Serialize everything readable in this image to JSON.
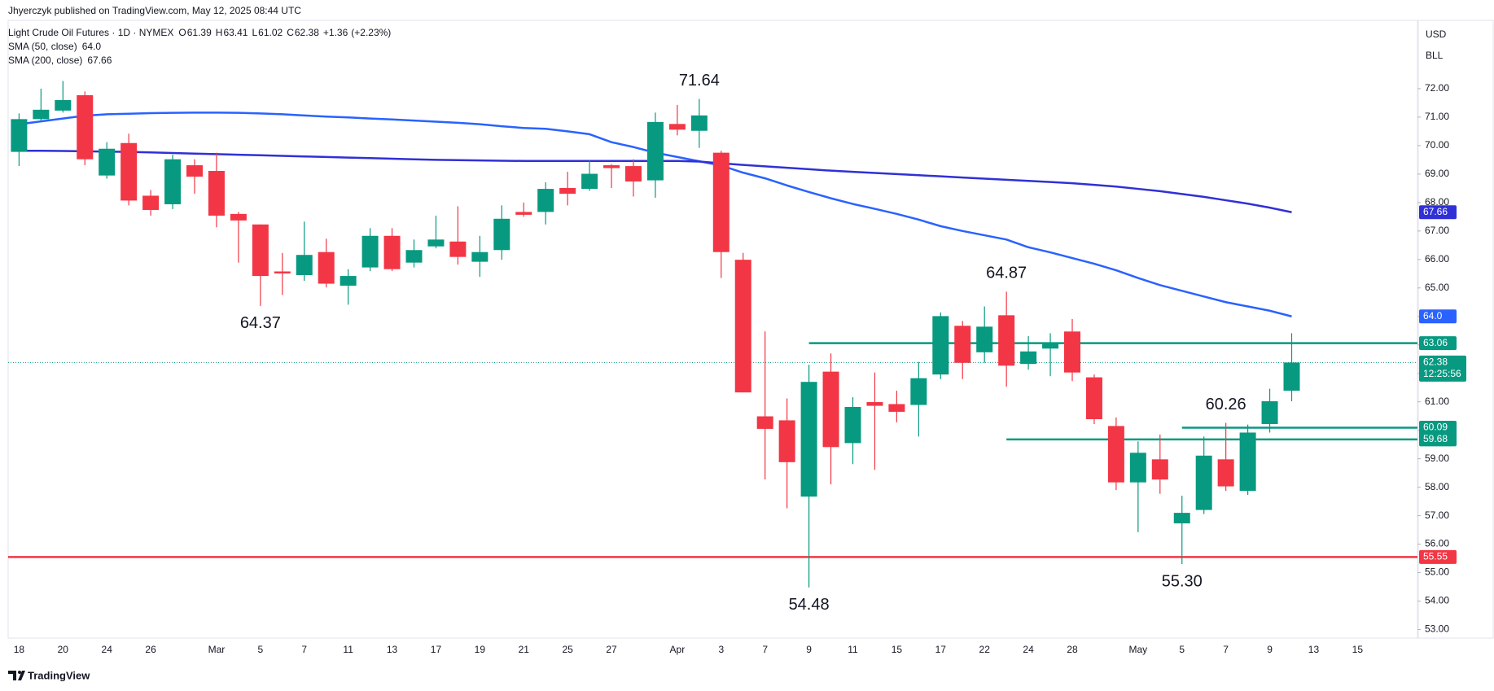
{
  "chart_data": {
    "type": "candlestick",
    "published": "Jhyerczyk published on TradingView.com, May 12, 2025 08:44 UTC",
    "title": "Light Crude Oil Futures · 1D · NYMEX",
    "quote": [
      {
        "label": "O",
        "value": 61.39
      },
      {
        "label": "H",
        "value": 63.41
      },
      {
        "label": "L",
        "value": 61.02
      },
      {
        "label": "C",
        "value": 62.38
      }
    ],
    "change": {
      "value": 1.36,
      "label": "+1.36"
    },
    "change_pct": {
      "value": 2.23,
      "label": "(+2.23%)"
    },
    "currency": "USD",
    "unit": "BLL",
    "watermark": "TradingView",
    "up_color": "#089981",
    "down_color": "#f23645",
    "categories": [
      "18",
      null,
      "20",
      null,
      "24",
      null,
      "26",
      null,
      null,
      "Mar",
      null,
      "5",
      null,
      "7",
      null,
      "11",
      null,
      "13",
      null,
      "17",
      null,
      "19",
      null,
      "21",
      null,
      "25",
      null,
      "27",
      null,
      null,
      "Apr",
      null,
      "3",
      null,
      "7",
      null,
      "9",
      null,
      "11",
      null,
      "15",
      null,
      "17",
      null,
      "22",
      null,
      "24",
      null,
      "28",
      null,
      null,
      "May",
      null,
      "5",
      null,
      "7",
      null,
      "9",
      null,
      "13",
      null,
      "15"
    ],
    "open": [
      69.78,
      70.93,
      71.23,
      71.77,
      68.95,
      70.09,
      68.24,
      67.94,
      69.31,
      69.11,
      67.6,
      67.23,
      65.58,
      65.45,
      66.26,
      65.08,
      65.72,
      66.83,
      65.89,
      66.46,
      66.63,
      65.92,
      66.33,
      67.67,
      67.67,
      68.51,
      68.48,
      69.31,
      69.28,
      68.78,
      70.76,
      70.52,
      69.75,
      65.99,
      60.49,
      60.35,
      57.67,
      62.06,
      59.55,
      60.99,
      60.92,
      60.89,
      61.96,
      63.67,
      62.74,
      64.04,
      62.33,
      62.87,
      63.47,
      61.86,
      60.15,
      58.17,
      58.98,
      56.73,
      57.2,
      58.98,
      57.87,
      60.22,
      61.39,
      null,
      null,
      null
    ],
    "high": [
      71.13,
      72.0,
      72.27,
      71.9,
      70.12,
      70.42,
      68.44,
      69.68,
      69.52,
      69.75,
      67.67,
      67.23,
      66.23,
      67.33,
      66.73,
      65.66,
      67.1,
      67.1,
      66.7,
      67.54,
      67.87,
      66.83,
      67.9,
      68.0,
      68.71,
      69.08,
      69.48,
      69.35,
      69.52,
      71.16,
      71.43,
      71.64,
      69.82,
      66.23,
      63.47,
      61.12,
      62.3,
      62.7,
      61.16,
      62.03,
      61.39,
      62.4,
      64.14,
      63.84,
      64.35,
      64.87,
      63.31,
      63.41,
      63.91,
      61.96,
      60.45,
      59.61,
      59.85,
      57.7,
      59.78,
      60.26,
      60.2,
      61.46,
      63.41,
      null,
      null,
      null
    ],
    "low": [
      69.28,
      70.86,
      71.16,
      69.31,
      68.84,
      67.9,
      67.54,
      67.77,
      68.31,
      67.13,
      65.89,
      64.37,
      64.75,
      65.25,
      65.02,
      64.41,
      65.59,
      65.59,
      65.72,
      66.39,
      65.82,
      65.39,
      65.99,
      67.5,
      67.23,
      67.9,
      68.41,
      68.51,
      68.21,
      68.17,
      70.36,
      69.92,
      65.35,
      61.33,
      58.27,
      57.26,
      54.48,
      58.1,
      58.81,
      58.61,
      60.28,
      59.78,
      61.8,
      61.8,
      62.37,
      61.53,
      62.13,
      61.9,
      61.73,
      60.22,
      57.9,
      56.42,
      57.77,
      55.3,
      57.06,
      57.87,
      57.73,
      59.92,
      61.02,
      null,
      null,
      null
    ],
    "close": [
      70.93,
      71.26,
      71.6,
      69.52,
      69.89,
      68.07,
      67.74,
      69.52,
      68.91,
      67.54,
      67.37,
      65.42,
      65.51,
      66.16,
      65.15,
      65.42,
      66.83,
      65.66,
      66.33,
      66.7,
      66.09,
      66.26,
      67.43,
      67.57,
      68.48,
      68.31,
      69.01,
      69.21,
      68.74,
      70.83,
      70.56,
      71.06,
      66.26,
      61.33,
      60.05,
      58.88,
      61.7,
      59.41,
      60.82,
      60.86,
      60.65,
      61.83,
      64.01,
      62.37,
      63.64,
      62.27,
      62.77,
      63.07,
      62.03,
      60.39,
      58.17,
      59.21,
      58.27,
      57.1,
      59.11,
      58.03,
      59.92,
      61.02,
      62.38,
      null,
      null,
      null
    ],
    "series": [
      {
        "name": "SMA (50, close)",
        "color": "#2962ff",
        "last": {
          "value": 64.0,
          "label": "64.0"
        },
        "values": [
          70.75,
          70.85,
          70.95,
          71.05,
          71.1,
          71.12,
          71.14,
          71.15,
          71.16,
          71.16,
          71.15,
          71.13,
          71.1,
          71.06,
          71.02,
          70.99,
          70.95,
          70.92,
          70.88,
          70.84,
          70.8,
          70.75,
          70.68,
          70.62,
          70.59,
          70.5,
          70.4,
          70.12,
          69.95,
          69.75,
          69.6,
          69.45,
          69.3,
          69.05,
          68.85,
          68.6,
          68.37,
          68.15,
          67.95,
          67.78,
          67.6,
          67.4,
          67.17,
          67.0,
          66.85,
          66.7,
          66.43,
          66.25,
          66.05,
          65.85,
          65.62,
          65.35,
          65.1,
          64.9,
          64.7,
          64.5,
          64.35,
          64.2,
          64.0,
          null,
          null,
          null
        ]
      },
      {
        "name": "SMA (200, close)",
        "color": "#3030d6",
        "last": {
          "value": 67.66,
          "label": "67.66"
        },
        "values": [
          69.82,
          69.82,
          69.81,
          69.8,
          69.79,
          69.78,
          69.76,
          69.74,
          69.72,
          69.7,
          69.68,
          69.66,
          69.64,
          69.62,
          69.6,
          69.58,
          69.56,
          69.54,
          69.52,
          69.5,
          69.49,
          69.48,
          69.47,
          69.46,
          69.46,
          69.46,
          69.46,
          69.46,
          69.46,
          69.46,
          69.46,
          69.44,
          69.38,
          69.32,
          69.27,
          69.22,
          69.17,
          69.12,
          69.08,
          69.04,
          69.0,
          68.96,
          68.92,
          68.88,
          68.84,
          68.8,
          68.76,
          68.72,
          68.68,
          68.62,
          68.56,
          68.48,
          68.4,
          68.3,
          68.2,
          68.08,
          67.96,
          67.82,
          67.66,
          null,
          null,
          null
        ]
      }
    ],
    "hlines": [
      {
        "value": 63.06,
        "label": "63.06",
        "color": "#089981",
        "start": 36
      },
      {
        "value": 60.09,
        "label": "60.09",
        "color": "#089981",
        "start": 53
      },
      {
        "value": 59.68,
        "label": "59.68",
        "color": "#089981",
        "start": 45
      },
      {
        "value": 55.55,
        "label": "55.55",
        "color": "#f23645",
        "start": 0
      }
    ],
    "last_price": {
      "value": 62.38,
      "label": "62.38",
      "countdown": "12:25:56",
      "color": "#089981"
    },
    "annotations": [
      {
        "label": "71.64",
        "value": 71.64,
        "at": 31,
        "side": "above"
      },
      {
        "label": "64.37",
        "value": 64.37,
        "at": 11,
        "side": "below"
      },
      {
        "label": "54.48",
        "value": 54.48,
        "at": 36,
        "side": "below"
      },
      {
        "label": "64.87",
        "value": 64.87,
        "at": 45,
        "side": "above"
      },
      {
        "label": "60.26",
        "value": 60.26,
        "at": 55,
        "side": "above"
      },
      {
        "label": "55.30",
        "value": 55.3,
        "at": 53,
        "side": "below"
      }
    ],
    "ylim": [
      52.7,
      74.4
    ],
    "yticks": [
      {
        "value": 53,
        "label": "53.00"
      },
      {
        "value": 54,
        "label": "54.00"
      },
      {
        "value": 55,
        "label": "55.00"
      },
      {
        "value": 56,
        "label": "56.00"
      },
      {
        "value": 57,
        "label": "57.00"
      },
      {
        "value": 58,
        "label": "58.00"
      },
      {
        "value": 59,
        "label": "59.00"
      },
      {
        "value": 60,
        "label": "60.00"
      },
      {
        "value": 61,
        "label": "61.00"
      },
      {
        "value": 62,
        "label": "62.00"
      },
      {
        "value": 63,
        "label": "63.00"
      },
      {
        "value": 64,
        "label": "64.00"
      },
      {
        "value": 65,
        "label": "65.00"
      },
      {
        "value": 66,
        "label": "66.00"
      },
      {
        "value": 67,
        "label": "67.00"
      },
      {
        "value": 68,
        "label": "68.00"
      },
      {
        "value": 69,
        "label": "69.00"
      },
      {
        "value": 70,
        "label": "70.00"
      },
      {
        "value": 71,
        "label": "71.00"
      },
      {
        "value": 72,
        "label": "72.00"
      }
    ],
    "grid": false
  }
}
